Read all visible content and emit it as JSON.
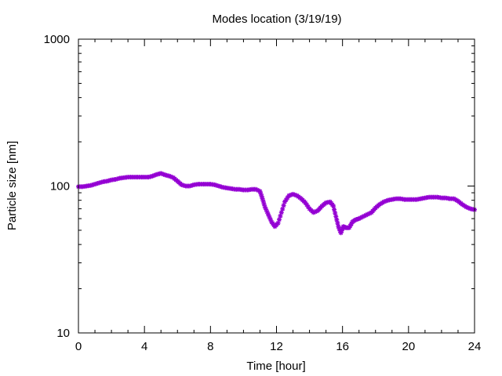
{
  "chart_data": {
    "type": "scatter",
    "title": "Modes location (3/19/19)",
    "xlabel": "Time [hour]",
    "ylabel": "Particle size [nm]",
    "xlim": [
      0,
      24
    ],
    "ylim": [
      10,
      1000
    ],
    "y_scale": "log",
    "grid": false,
    "legend": "none",
    "x_ticks": [
      0,
      4,
      8,
      12,
      16,
      20,
      24
    ],
    "x_tick_labels": [
      "0",
      "4",
      "8",
      "12",
      "16",
      "20",
      "24"
    ],
    "y_ticks": [
      10,
      100,
      1000
    ],
    "y_tick_labels": [
      "10",
      "100",
      "1000"
    ],
    "marker_color": "#9400d3",
    "marker": "star",
    "series": [
      {
        "points": [
          [
            0.0,
            99
          ],
          [
            0.25,
            99
          ],
          [
            0.5,
            100
          ],
          [
            0.75,
            101
          ],
          [
            1.0,
            103
          ],
          [
            1.25,
            105
          ],
          [
            1.5,
            107
          ],
          [
            1.75,
            108
          ],
          [
            2.0,
            110
          ],
          [
            2.25,
            111
          ],
          [
            2.5,
            113
          ],
          [
            2.75,
            114
          ],
          [
            3.0,
            115
          ],
          [
            3.25,
            115
          ],
          [
            3.5,
            115
          ],
          [
            3.75,
            115
          ],
          [
            4.0,
            115
          ],
          [
            4.25,
            115
          ],
          [
            4.5,
            117
          ],
          [
            4.75,
            120
          ],
          [
            5.0,
            122
          ],
          [
            5.25,
            119
          ],
          [
            5.5,
            117
          ],
          [
            5.75,
            114
          ],
          [
            6.0,
            108
          ],
          [
            6.25,
            102
          ],
          [
            6.5,
            100
          ],
          [
            6.75,
            100
          ],
          [
            7.0,
            102
          ],
          [
            7.25,
            103
          ],
          [
            7.5,
            103
          ],
          [
            7.75,
            103
          ],
          [
            8.0,
            103
          ],
          [
            8.25,
            102
          ],
          [
            8.5,
            100
          ],
          [
            8.75,
            98
          ],
          [
            9.0,
            97
          ],
          [
            9.25,
            96
          ],
          [
            9.5,
            95
          ],
          [
            9.75,
            95
          ],
          [
            10.0,
            94
          ],
          [
            10.25,
            94
          ],
          [
            10.5,
            95
          ],
          [
            10.75,
            95
          ],
          [
            11.0,
            92
          ],
          [
            11.15,
            82
          ],
          [
            11.3,
            72
          ],
          [
            11.5,
            64
          ],
          [
            11.7,
            57
          ],
          [
            11.9,
            53
          ],
          [
            12.1,
            56
          ],
          [
            12.3,
            66
          ],
          [
            12.5,
            78
          ],
          [
            12.75,
            86
          ],
          [
            13.0,
            88
          ],
          [
            13.25,
            86
          ],
          [
            13.5,
            82
          ],
          [
            13.75,
            77
          ],
          [
            14.0,
            70
          ],
          [
            14.25,
            66
          ],
          [
            14.5,
            68
          ],
          [
            14.75,
            73
          ],
          [
            15.0,
            77
          ],
          [
            15.25,
            78
          ],
          [
            15.45,
            73
          ],
          [
            15.6,
            62
          ],
          [
            15.75,
            53
          ],
          [
            15.9,
            48
          ],
          [
            16.05,
            53
          ],
          [
            16.2,
            52
          ],
          [
            16.4,
            52
          ],
          [
            16.6,
            57
          ],
          [
            16.8,
            59
          ],
          [
            17.0,
            60
          ],
          [
            17.25,
            62
          ],
          [
            17.5,
            64
          ],
          [
            17.75,
            66
          ],
          [
            18.0,
            71
          ],
          [
            18.25,
            75
          ],
          [
            18.5,
            78
          ],
          [
            18.75,
            80
          ],
          [
            19.0,
            81
          ],
          [
            19.25,
            82
          ],
          [
            19.5,
            82
          ],
          [
            19.75,
            81
          ],
          [
            20.0,
            81
          ],
          [
            20.25,
            81
          ],
          [
            20.5,
            81
          ],
          [
            20.75,
            82
          ],
          [
            21.0,
            83
          ],
          [
            21.25,
            84
          ],
          [
            21.5,
            84
          ],
          [
            21.75,
            84
          ],
          [
            22.0,
            83
          ],
          [
            22.25,
            83
          ],
          [
            22.5,
            82
          ],
          [
            22.75,
            82
          ],
          [
            23.0,
            79
          ],
          [
            23.25,
            75
          ],
          [
            23.5,
            72
          ],
          [
            23.75,
            70
          ],
          [
            24.0,
            69
          ]
        ]
      }
    ]
  }
}
